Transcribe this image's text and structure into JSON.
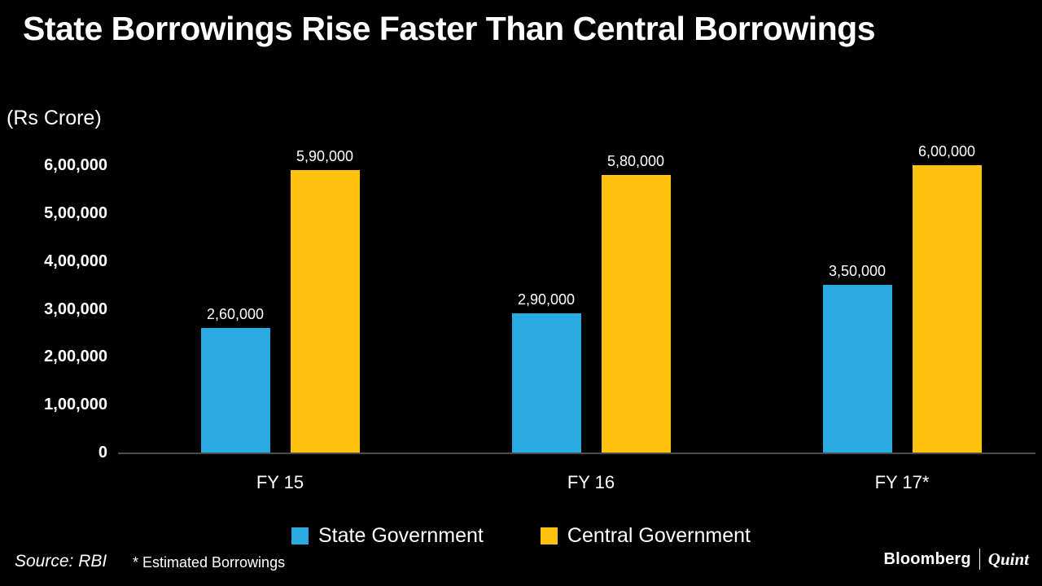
{
  "title": "State Borrowings Rise Faster Than Central Borrowings",
  "unit_label": "(Rs Crore)",
  "footer": {
    "source": "Source: RBI",
    "footnote": "* Estimated Borrowings"
  },
  "logo": {
    "bloomberg": "Bloomberg",
    "quint": "Quint"
  },
  "colors": {
    "state": "#29ABE2",
    "central": "#FFC20E",
    "background": "#000000",
    "axis": "#4d4d4d",
    "text": "#FFFFFF"
  },
  "chart_data": {
    "type": "bar",
    "title": "State Borrowings Rise Faster Than Central Borrowings",
    "ylabel": "(Rs Crore)",
    "xlabel": "",
    "categories": [
      "FY 15",
      "FY 16",
      "FY 17*"
    ],
    "series": [
      {
        "name": "State Government",
        "values": [
          260000,
          290000,
          350000
        ],
        "value_labels": [
          "2,60,000",
          "2,90,000",
          "3,50,000"
        ],
        "color": "#29ABE2"
      },
      {
        "name": "Central Government",
        "values": [
          590000,
          580000,
          600000
        ],
        "value_labels": [
          "5,90,000",
          "5,80,000",
          "6,00,000"
        ],
        "color": "#FFC20E"
      }
    ],
    "ylim": [
      0,
      600000
    ],
    "yticks": [
      {
        "value": 0,
        "label": "0"
      },
      {
        "value": 100000,
        "label": "1,00,000"
      },
      {
        "value": 200000,
        "label": "2,00,000"
      },
      {
        "value": 300000,
        "label": "3,00,000"
      },
      {
        "value": 400000,
        "label": "4,00,000"
      },
      {
        "value": 500000,
        "label": "5,00,000"
      },
      {
        "value": 600000,
        "label": "6,00,000"
      }
    ],
    "grid": false,
    "legend_position": "bottom"
  }
}
